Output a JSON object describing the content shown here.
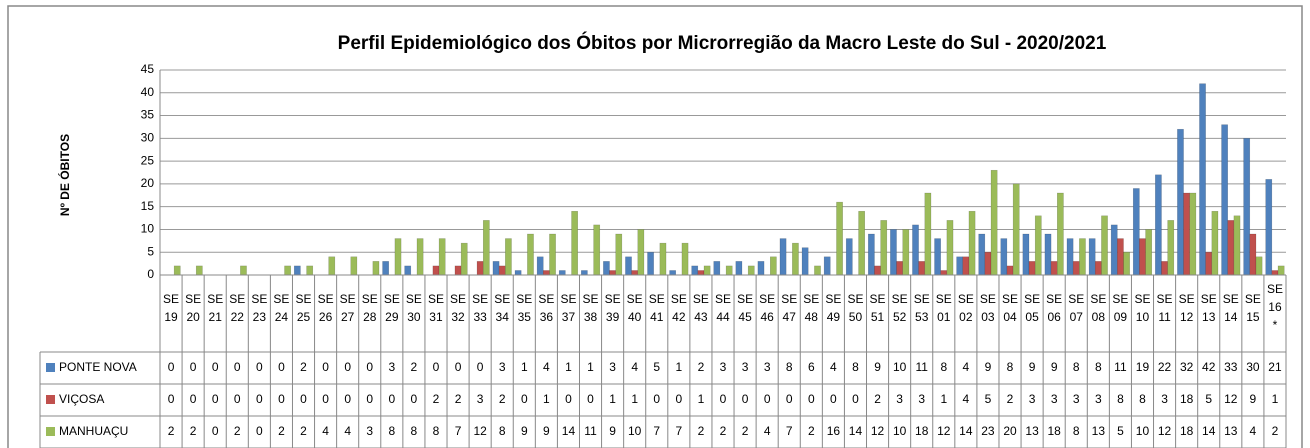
{
  "chart_data": {
    "type": "bar",
    "title": "Perfil Epidemiológico dos Óbitos por Microrregião da Macro Leste do Sul - 2020/2021",
    "y_label": "Nº DE ÓBITOS",
    "categories": [
      "SE 19",
      "SE 20",
      "SE 21",
      "SE 22",
      "SE 23",
      "SE 24",
      "SE 25",
      "SE 26",
      "SE 27",
      "SE 28",
      "SE 29",
      "SE 30",
      "SE 31",
      "SE 32",
      "SE 33",
      "SE 34",
      "SE 35",
      "SE 36",
      "SE 37",
      "SE 38",
      "SE 39",
      "SE 40",
      "SE 41",
      "SE 42",
      "SE 43",
      "SE 44",
      "SE 45",
      "SE 46",
      "SE 47",
      "SE 48",
      "SE 49",
      "SE 50",
      "SE 51",
      "SE 52",
      "SE 53",
      "SE 01",
      "SE 02",
      "SE 03",
      "SE 04",
      "SE 05",
      "SE 06",
      "SE 07",
      "SE 08",
      "SE 09",
      "SE 10",
      "SE 11",
      "SE 12",
      "SE 13",
      "SE 14",
      "SE 15",
      "SE 16 *"
    ],
    "series": [
      {
        "name": "PONTE NOVA",
        "color": "#4f81bd",
        "values": [
          0,
          0,
          0,
          0,
          0,
          0,
          2,
          0,
          0,
          0,
          3,
          2,
          0,
          0,
          0,
          3,
          1,
          4,
          1,
          1,
          3,
          4,
          5,
          1,
          2,
          3,
          3,
          3,
          8,
          6,
          4,
          8,
          9,
          10,
          11,
          8,
          4,
          9,
          8,
          9,
          9,
          8,
          8,
          11,
          19,
          22,
          32,
          42,
          33,
          30,
          21
        ]
      },
      {
        "name": "VIÇOSA",
        "color": "#c0504d",
        "values": [
          0,
          0,
          0,
          0,
          0,
          0,
          0,
          0,
          0,
          0,
          0,
          0,
          2,
          2,
          3,
          2,
          0,
          1,
          0,
          0,
          1,
          1,
          0,
          0,
          1,
          0,
          0,
          0,
          0,
          0,
          0,
          0,
          2,
          3,
          3,
          1,
          4,
          5,
          2,
          3,
          3,
          3,
          3,
          8,
          8,
          3,
          18,
          5,
          12,
          9,
          1
        ]
      },
      {
        "name": "MANHUAÇU",
        "color": "#9bbb59",
        "values": [
          2,
          2,
          0,
          2,
          0,
          2,
          2,
          4,
          4,
          3,
          8,
          8,
          8,
          7,
          12,
          8,
          9,
          9,
          14,
          11,
          9,
          10,
          7,
          7,
          2,
          2,
          2,
          4,
          7,
          2,
          16,
          14,
          12,
          10,
          18,
          12,
          14,
          23,
          20,
          13,
          18,
          8,
          13,
          5,
          10,
          12,
          18,
          14,
          13,
          4,
          2
        ]
      }
    ],
    "ylim": [
      0,
      45
    ],
    "yticks": [
      0,
      5,
      10,
      15,
      20,
      25,
      30,
      35,
      40,
      45
    ],
    "grid": true
  }
}
